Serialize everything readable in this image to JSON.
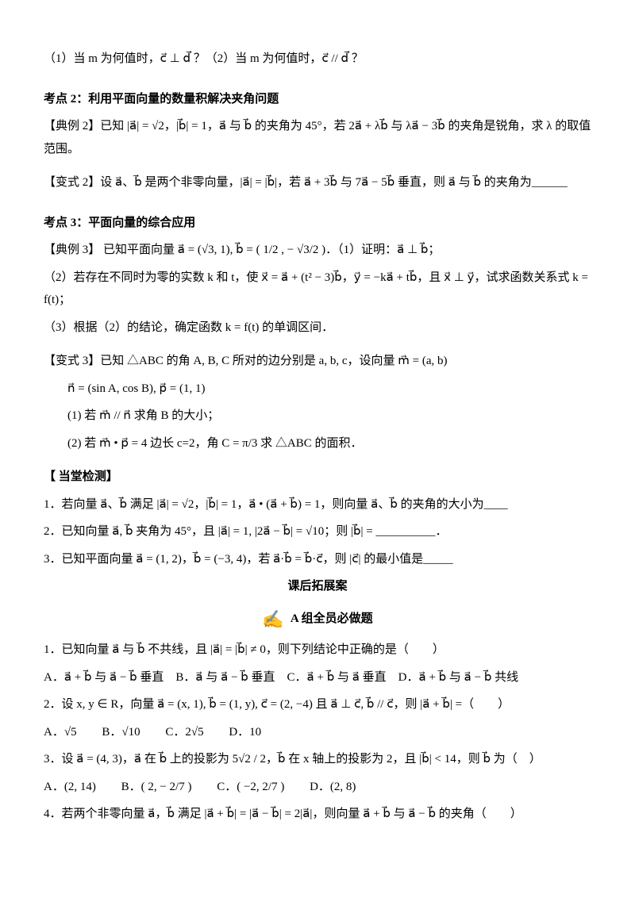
{
  "q1": {
    "text": "（1）当 m 为何值时，c⃗ ⊥ d⃗ ？（2）当 m 为何值时，c⃗ // d⃗ ？"
  },
  "kd2": {
    "title": "考点 2：利用平面向量的数量积解决夹角问题",
    "ex": "【典例 2】已知 |a⃗| = √2，|b⃗| = 1，a⃗ 与 b⃗ 的夹角为 45°，若 2a⃗ + λb⃗ 与 λa⃗ − 3b⃗ 的夹角是锐角，求 λ 的取值范围。",
    "var": "【变式 2】设 a⃗、b⃗ 是两个非零向量，|a⃗| = |b⃗|，若 a⃗ + 3b⃗ 与 7a⃗ − 5b⃗ 垂直，则 a⃗ 与 b⃗ 的夹角为",
    "blank": "______"
  },
  "kd3": {
    "title": "考点 3：平面向量的综合应用",
    "ex_a": "【典例 3】 已知平面向量 a⃗ = (√3, 1), b⃗ = ( 1/2 , − √3/2 )．（1）证明：a⃗ ⊥ b⃗；",
    "ex_b": "（2）若存在不同时为零的实数 k 和 t，使 x⃗ = a⃗ + (t² − 3)b⃗，y⃗ = −ka⃗ + tb⃗，且 x⃗ ⊥ y⃗，试求函数关系式 k = f(t)；",
    "ex_c": "（3）根据（2）的结论，确定函数 k = f(t) 的单调区间．",
    "var_a": "【变式 3】已知 △ABC 的角 A, B, C 所对的边分别是 a, b, c，设向量 m⃗ = (a, b)",
    "var_b": "n⃗ = (sin A, cos B), p⃗ = (1, 1)",
    "var_c": "(1) 若 m⃗ // n⃗ 求角 B 的大小；",
    "var_d": "(2) 若 m⃗ • p⃗ = 4 边长 c=2，角 C = π/3 求 △ABC 的面积．"
  },
  "check": {
    "title": "【 当堂检测】",
    "q1": "1．若向量 a⃗、b⃗ 满足 |a⃗| = √2，|b⃗| = 1，a⃗ • (a⃗ + b⃗) = 1，则向量 a⃗、b⃗ 的夹角的大小为____",
    "q2": "2．已知向量 a⃗, b⃗ 夹角为 45°，且 |a⃗| = 1, |2a⃗ − b⃗| = √10；则 |b⃗| = __________．",
    "q3": "3．已知平面向量 a⃗ = (1, 2)，b⃗ = (−3, 4)，若 a⃗·b⃗ = b⃗·c⃗，则 |c⃗| 的最小值是_____"
  },
  "ext": {
    "title": "课后拓展案",
    "groupA": "A 组全员必做题"
  },
  "pA": {
    "q1": "1．已知向量 a⃗ 与 b⃗ 不共线，且 |a⃗| = |b⃗| ≠ 0，则下列结论中正确的是（　　）",
    "q1o": "A．a⃗ + b⃗ 与 a⃗ − b⃗ 垂直　B．a⃗ 与 a⃗ − b⃗ 垂直　C．a⃗ + b⃗ 与 a⃗ 垂直　D．a⃗ + b⃗ 与 a⃗ − b⃗ 共线",
    "q2": "2．设 x, y ∈ R，向量 a⃗ = (x, 1), b⃗ = (1, y), c⃗ = (2, −4) 且 a⃗ ⊥ c⃗, b⃗ // c⃗，则 |a⃗ + b⃗| =（　　）",
    "q2a": "A．√5",
    "q2b": "B．√10",
    "q2c": "C．2√5",
    "q2d": "D．10",
    "q3": "3．设 a⃗ = (4, 3)，a⃗ 在 b⃗ 上的投影为 5√2 / 2，b⃗ 在 x 轴上的投影为 2，且 |b⃗| < 14，则 b⃗ 为（　）",
    "q3a": "A．(2, 14)",
    "q3b": "B．( 2, − 2/7 )",
    "q3c": "C．( −2, 2/7 )",
    "q3d": "D．(2, 8)",
    "q4": "4．若两个非零向量 a⃗，b⃗ 满足 |a⃗ + b⃗| = |a⃗ − b⃗| = 2|a⃗|，则向量 a⃗ + b⃗ 与 a⃗ − b⃗ 的夹角（　　）"
  }
}
